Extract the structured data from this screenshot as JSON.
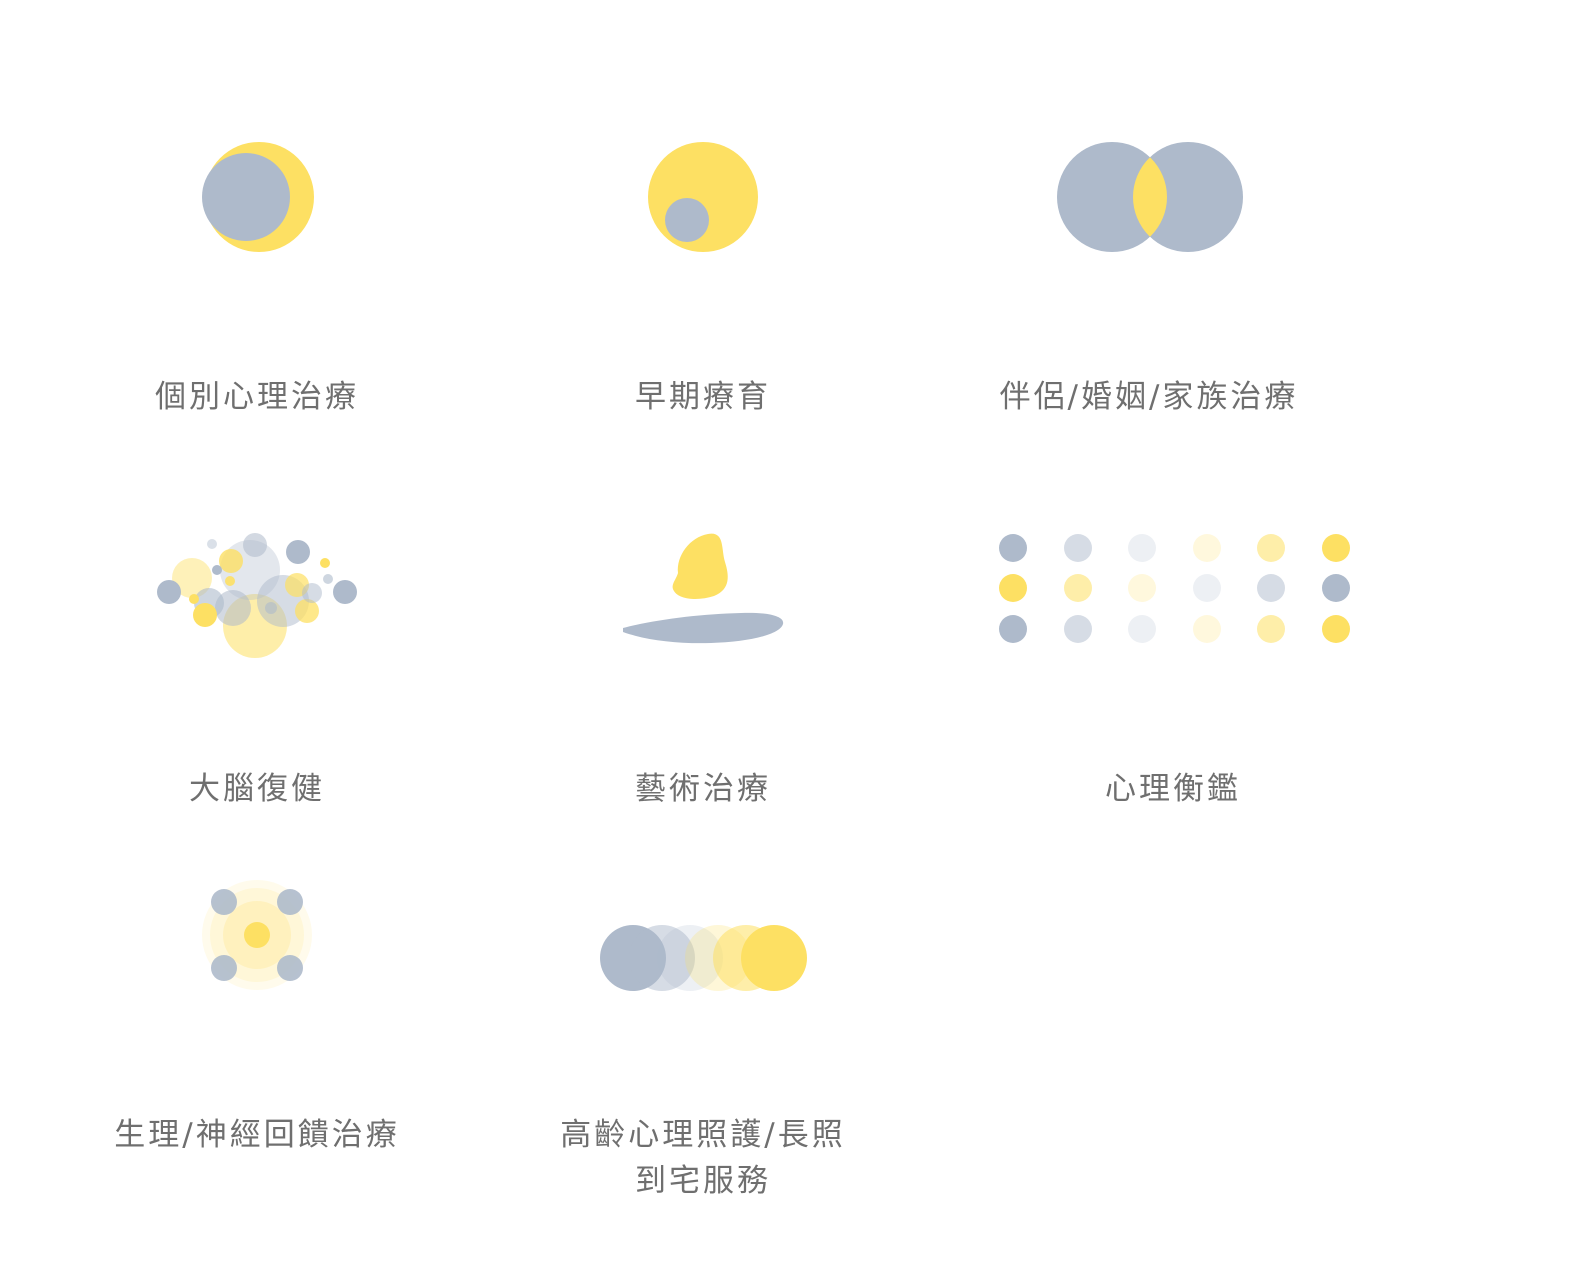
{
  "colors": {
    "slate": "#aebacb",
    "yellow": "#fde063",
    "text": "#6f6f6f"
  },
  "services": [
    {
      "id": "individual-therapy",
      "label": "個別心理治療",
      "icon": "crescent-moon-icon"
    },
    {
      "id": "early-intervention",
      "label": "早期療育",
      "icon": "nested-circles-icon"
    },
    {
      "id": "family-therapy",
      "label": "伴侶/婚姻/家族治療",
      "icon": "overlapping-circles-icon"
    },
    {
      "id": "brain-rehab",
      "label": "大腦復健",
      "icon": "bubble-cluster-icon"
    },
    {
      "id": "art-therapy",
      "label": "藝術治療",
      "icon": "stone-and-water-icon"
    },
    {
      "id": "assessment",
      "label": "心理衡鑑",
      "icon": "dot-grid-icon"
    },
    {
      "id": "biofeedback",
      "label": "生理/神經回饋治療",
      "icon": "glowing-center-icon"
    },
    {
      "id": "elderly-care",
      "label": "高齡心理照護/長照到宅服務",
      "icon": "gradient-circles-icon"
    }
  ]
}
